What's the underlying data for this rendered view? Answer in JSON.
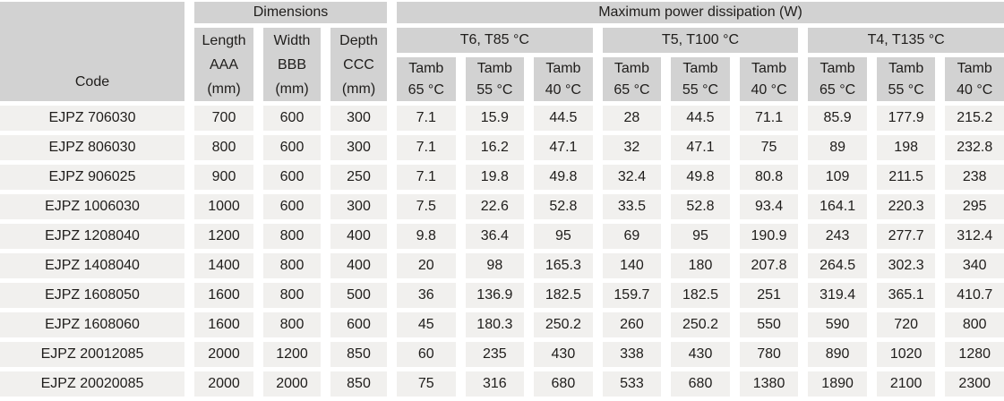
{
  "colors": {
    "header_bg": "#d2d2d2",
    "body_bg": "#f1f0ee",
    "text": "#1f1d1b",
    "page_bg": "#ffffff"
  },
  "table": {
    "header": {
      "code_label": "Code",
      "dimensions_group": "Dimensions",
      "power_group": "Maximum power dissipation (W)",
      "dim_columns": [
        {
          "title": "Length",
          "code": "AAA",
          "unit": "(mm)"
        },
        {
          "title": "Width",
          "code": "BBB",
          "unit": "(mm)"
        },
        {
          "title": "Depth",
          "code": "CCC",
          "unit": "(mm)"
        }
      ],
      "temp_groups": [
        "T6, T85 °C",
        "T5, T100 °C",
        "T4, T135 °C"
      ],
      "tamb_label": "Tamb",
      "tamb_temps": [
        "65 °C",
        "55 °C",
        "40 °C"
      ]
    },
    "rows": [
      {
        "code": "EJPZ 706030",
        "length": "700",
        "width": "600",
        "depth": "300",
        "values": [
          "7.1",
          "15.9",
          "44.5",
          "28",
          "44.5",
          "71.1",
          "85.9",
          "177.9",
          "215.2"
        ]
      },
      {
        "code": "EJPZ 806030",
        "length": "800",
        "width": "600",
        "depth": "300",
        "values": [
          "7.1",
          "16.2",
          "47.1",
          "32",
          "47.1",
          "75",
          "89",
          "198",
          "232.8"
        ]
      },
      {
        "code": "EJPZ 906025",
        "length": "900",
        "width": "600",
        "depth": "250",
        "values": [
          "7.1",
          "19.8",
          "49.8",
          "32.4",
          "49.8",
          "80.8",
          "109",
          "211.5",
          "238"
        ]
      },
      {
        "code": "EJPZ 1006030",
        "length": "1000",
        "width": "600",
        "depth": "300",
        "values": [
          "7.5",
          "22.6",
          "52.8",
          "33.5",
          "52.8",
          "93.4",
          "164.1",
          "220.3",
          "295"
        ]
      },
      {
        "code": "EJPZ 1208040",
        "length": "1200",
        "width": "800",
        "depth": "400",
        "values": [
          "9.8",
          "36.4",
          "95",
          "69",
          "95",
          "190.9",
          "243",
          "277.7",
          "312.4"
        ]
      },
      {
        "code": "EJPZ 1408040",
        "length": "1400",
        "width": "800",
        "depth": "400",
        "values": [
          "20",
          "98",
          "165.3",
          "140",
          "180",
          "207.8",
          "264.5",
          "302.3",
          "340"
        ]
      },
      {
        "code": "EJPZ 1608050",
        "length": "1600",
        "width": "800",
        "depth": "500",
        "values": [
          "36",
          "136.9",
          "182.5",
          "159.7",
          "182.5",
          "251",
          "319.4",
          "365.1",
          "410.7"
        ]
      },
      {
        "code": "EJPZ 1608060",
        "length": "1600",
        "width": "800",
        "depth": "600",
        "values": [
          "45",
          "180.3",
          "250.2",
          "260",
          "250.2",
          "550",
          "590",
          "720",
          "800"
        ]
      },
      {
        "code": "EJPZ 20012085",
        "length": "2000",
        "width": "1200",
        "depth": "850",
        "values": [
          "60",
          "235",
          "430",
          "338",
          "430",
          "780",
          "890",
          "1020",
          "1280"
        ]
      },
      {
        "code": "EJPZ 20020085",
        "length": "2000",
        "width": "2000",
        "depth": "850",
        "values": [
          "75",
          "316",
          "680",
          "533",
          "680",
          "1380",
          "1890",
          "2100",
          "2300"
        ]
      }
    ]
  }
}
